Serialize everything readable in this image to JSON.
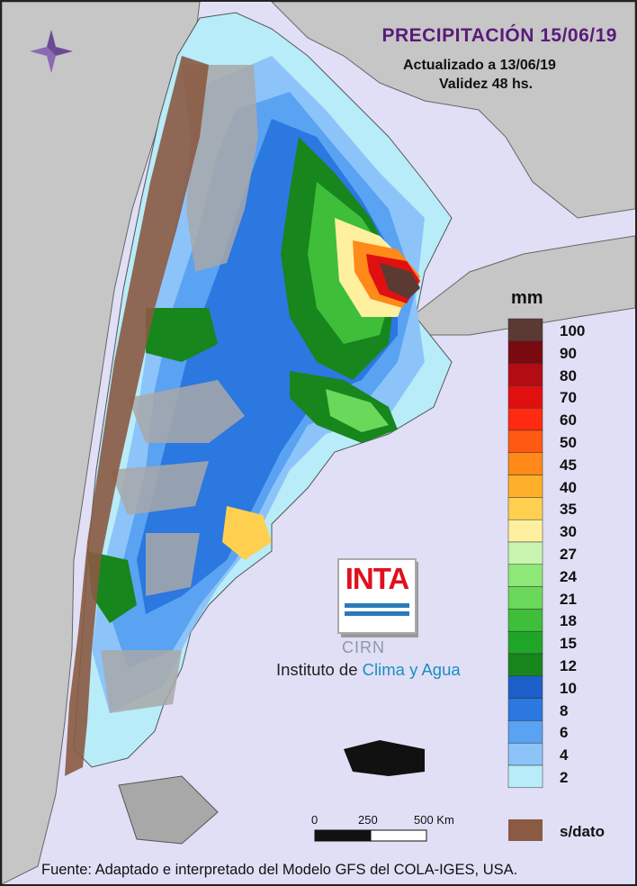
{
  "header": {
    "title": "PRECIPITACIÓN 15/06/19",
    "updated": "Actualizado a 13/06/19",
    "validity": "Validez 48 hs."
  },
  "legend": {
    "unit": "mm",
    "items": [
      {
        "label": "100",
        "color": "#5a3a32"
      },
      {
        "label": "90",
        "color": "#7a0a10"
      },
      {
        "label": "80",
        "color": "#b30c12"
      },
      {
        "label": "70",
        "color": "#e01010"
      },
      {
        "label": "60",
        "color": "#ff2a10"
      },
      {
        "label": "50",
        "color": "#ff5a14"
      },
      {
        "label": "45",
        "color": "#ff8a1a"
      },
      {
        "label": "40",
        "color": "#ffb02a"
      },
      {
        "label": "35",
        "color": "#ffd050"
      },
      {
        "label": "30",
        "color": "#fff0a0"
      },
      {
        "label": "27",
        "color": "#c8f5b0"
      },
      {
        "label": "24",
        "color": "#8ee878"
      },
      {
        "label": "21",
        "color": "#6ad85a"
      },
      {
        "label": "18",
        "color": "#3fbe3a"
      },
      {
        "label": "15",
        "color": "#1fa628"
      },
      {
        "label": "12",
        "color": "#17861c"
      },
      {
        "label": "10",
        "color": "#1c5fc8"
      },
      {
        "label": "8",
        "color": "#2a78e0"
      },
      {
        "label": "6",
        "color": "#5aa2f2"
      },
      {
        "label": "4",
        "color": "#8cc4fa"
      },
      {
        "label": "2",
        "color": "#b8ecf8"
      }
    ],
    "nodata_label": "s/dato",
    "nodata_color": "#8a5a42"
  },
  "scale": {
    "ticks": [
      "0",
      "250",
      "500 Km"
    ]
  },
  "logo": {
    "inta": "INTA",
    "cirn": "CIRN",
    "institute_prefix": "Instituto de ",
    "institute_emph": "Clima y Agua"
  },
  "footer": "Fuente: Adaptado e interpretado del Modelo GFS del COLA-IGES, USA.",
  "map_colors": {
    "ocean": "#e0dff6",
    "land_neighbor": "#c6c6c6",
    "relief": "#a8a8a8"
  }
}
